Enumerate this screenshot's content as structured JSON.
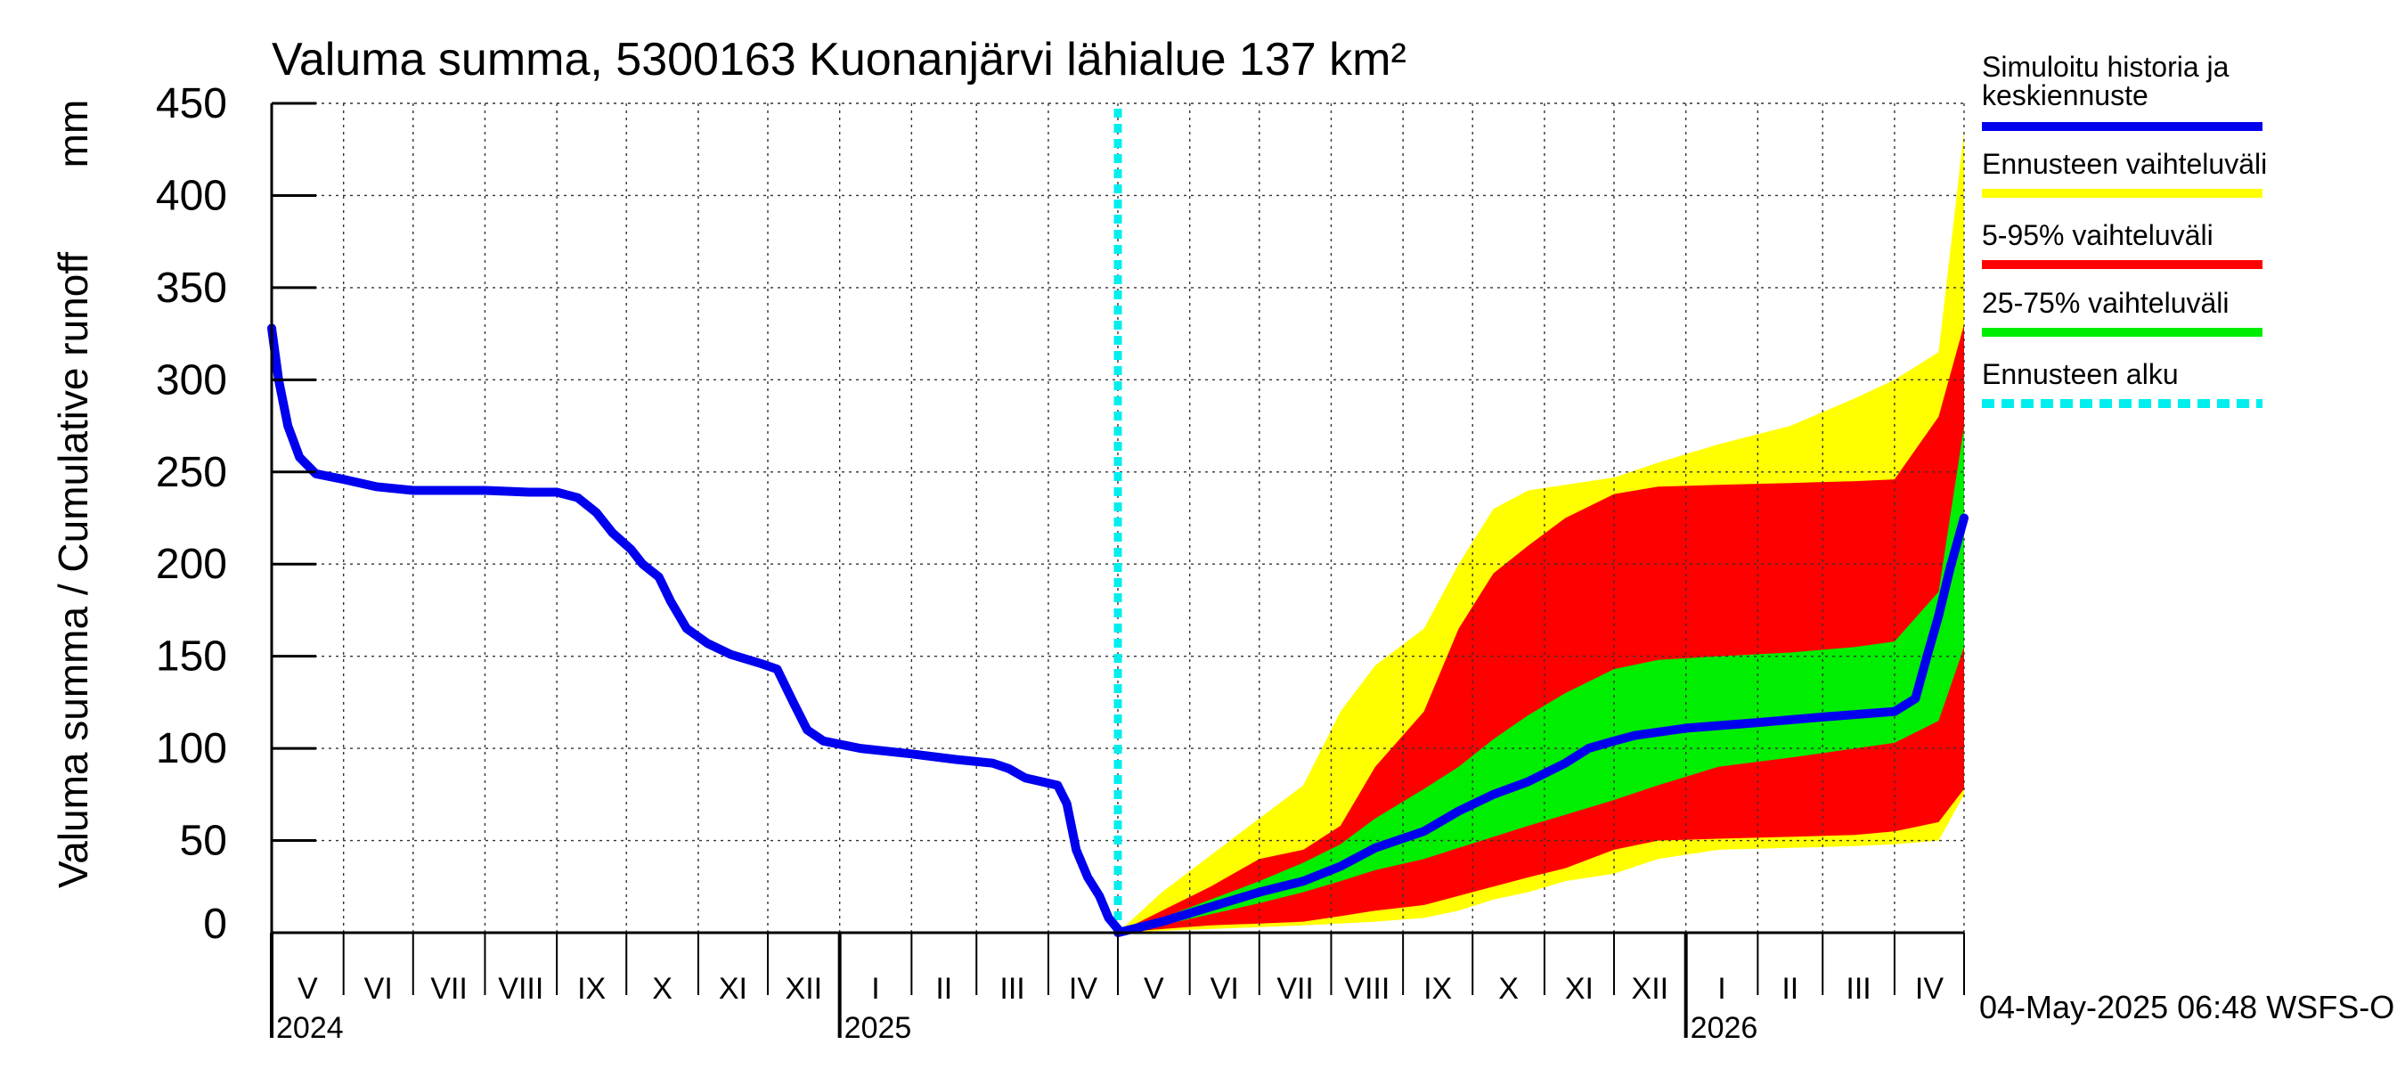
{
  "chart_data": {
    "type": "area",
    "title": "Valuma summa, 5300163 Kuonanjärvi lähialue 137 km²",
    "ylabel": "Valuma summa / Cumulative runoff",
    "yunit": "mm",
    "ylim": [
      0,
      450
    ],
    "yticks": [
      0,
      50,
      100,
      150,
      200,
      250,
      300,
      350,
      400,
      450
    ],
    "xlim": [
      "2024-05-01",
      "2026-05-01"
    ],
    "grid": true,
    "month_labels": [
      {
        "label": "V",
        "start": "2024-05-01",
        "end": "2024-06-01"
      },
      {
        "label": "VI",
        "start": "2024-06-01",
        "end": "2024-07-01"
      },
      {
        "label": "VII",
        "start": "2024-07-01",
        "end": "2024-08-01"
      },
      {
        "label": "VIII",
        "start": "2024-08-01",
        "end": "2024-09-01"
      },
      {
        "label": "IX",
        "start": "2024-09-01",
        "end": "2024-10-01"
      },
      {
        "label": "X",
        "start": "2024-10-01",
        "end": "2024-11-01"
      },
      {
        "label": "XI",
        "start": "2024-11-01",
        "end": "2024-12-01"
      },
      {
        "label": "XII",
        "start": "2024-12-01",
        "end": "2025-01-01"
      },
      {
        "label": "I",
        "start": "2025-01-01",
        "end": "2025-02-01"
      },
      {
        "label": "II",
        "start": "2025-02-01",
        "end": "2025-03-01"
      },
      {
        "label": "III",
        "start": "2025-03-01",
        "end": "2025-04-01"
      },
      {
        "label": "IV",
        "start": "2025-04-01",
        "end": "2025-05-01"
      },
      {
        "label": "V",
        "start": "2025-05-01",
        "end": "2025-06-01"
      },
      {
        "label": "VI",
        "start": "2025-06-01",
        "end": "2025-07-01"
      },
      {
        "label": "VII",
        "start": "2025-07-01",
        "end": "2025-08-01"
      },
      {
        "label": "VIII",
        "start": "2025-08-01",
        "end": "2025-09-01"
      },
      {
        "label": "IX",
        "start": "2025-09-01",
        "end": "2025-10-01"
      },
      {
        "label": "X",
        "start": "2025-10-01",
        "end": "2025-11-01"
      },
      {
        "label": "XI",
        "start": "2025-11-01",
        "end": "2025-12-01"
      },
      {
        "label": "XII",
        "start": "2025-12-01",
        "end": "2026-01-01"
      },
      {
        "label": "I",
        "start": "2026-01-01",
        "end": "2026-02-01"
      },
      {
        "label": "II",
        "start": "2026-02-01",
        "end": "2026-03-01"
      },
      {
        "label": "III",
        "start": "2026-03-01",
        "end": "2026-04-01"
      },
      {
        "label": "IV",
        "start": "2026-04-01",
        "end": "2026-05-01"
      }
    ],
    "year_labels": [
      {
        "label": "2024",
        "date": "2024-05-01"
      },
      {
        "label": "2025",
        "date": "2025-01-01"
      },
      {
        "label": "2026",
        "date": "2026-01-01"
      }
    ],
    "forecast_start": "2025-05-01",
    "history": {
      "name": "Simuloitu historia ja keskiennuste",
      "color": "#0000ee",
      "points": [
        [
          "2024-05-01",
          328
        ],
        [
          "2024-05-04",
          300
        ],
        [
          "2024-05-08",
          275
        ],
        [
          "2024-05-13",
          258
        ],
        [
          "2024-05-20",
          249
        ],
        [
          "2024-06-01",
          246
        ],
        [
          "2024-06-15",
          242
        ],
        [
          "2024-07-01",
          240
        ],
        [
          "2024-08-01",
          240
        ],
        [
          "2024-08-20",
          239
        ],
        [
          "2024-09-01",
          239
        ],
        [
          "2024-09-10",
          236
        ],
        [
          "2024-09-18",
          228
        ],
        [
          "2024-09-25",
          217
        ],
        [
          "2024-10-03",
          208
        ],
        [
          "2024-10-08",
          200
        ],
        [
          "2024-10-15",
          193
        ],
        [
          "2024-10-20",
          180
        ],
        [
          "2024-10-27",
          165
        ],
        [
          "2024-11-05",
          157
        ],
        [
          "2024-11-15",
          151
        ],
        [
          "2024-11-28",
          146
        ],
        [
          "2024-12-05",
          143
        ],
        [
          "2024-12-12",
          125
        ],
        [
          "2024-12-18",
          110
        ],
        [
          "2024-12-25",
          104
        ],
        [
          "2025-01-10",
          100
        ],
        [
          "2025-02-01",
          97
        ],
        [
          "2025-02-20",
          94
        ],
        [
          "2025-03-08",
          92
        ],
        [
          "2025-03-15",
          89
        ],
        [
          "2025-03-22",
          84
        ],
        [
          "2025-04-05",
          80
        ],
        [
          "2025-04-09",
          70
        ],
        [
          "2025-04-13",
          45
        ],
        [
          "2025-04-18",
          30
        ],
        [
          "2025-04-23",
          20
        ],
        [
          "2025-04-27",
          8
        ],
        [
          "2025-05-01",
          2
        ]
      ]
    },
    "forecast_median": {
      "name": "Simuloitu historia ja keskiennuste",
      "color": "#0000ee",
      "points": [
        [
          "2025-05-01",
          0
        ],
        [
          "2025-05-20",
          6
        ],
        [
          "2025-06-10",
          14
        ],
        [
          "2025-07-01",
          22
        ],
        [
          "2025-07-20",
          28
        ],
        [
          "2025-08-05",
          36
        ],
        [
          "2025-08-20",
          46
        ],
        [
          "2025-09-10",
          55
        ],
        [
          "2025-09-25",
          66
        ],
        [
          "2025-10-10",
          75
        ],
        [
          "2025-10-25",
          82
        ],
        [
          "2025-11-10",
          92
        ],
        [
          "2025-11-20",
          100
        ],
        [
          "2025-12-01",
          104
        ],
        [
          "2025-12-10",
          107
        ],
        [
          "2026-01-01",
          111
        ],
        [
          "2026-02-01",
          114
        ],
        [
          "2026-03-01",
          117
        ],
        [
          "2026-04-01",
          120
        ],
        [
          "2026-04-10",
          127
        ],
        [
          "2026-04-15",
          150
        ],
        [
          "2026-04-20",
          172
        ],
        [
          "2026-04-25",
          198
        ],
        [
          "2026-05-01",
          225
        ]
      ]
    },
    "bands": [
      {
        "name": "Ennusteen vaihteluväli",
        "color": "#ffff00",
        "points": [
          [
            "2025-05-01",
            0,
            0
          ],
          [
            "2025-05-20",
            22,
            1
          ],
          [
            "2025-06-10",
            42,
            2
          ],
          [
            "2025-07-01",
            62,
            3
          ],
          [
            "2025-07-20",
            80,
            4
          ],
          [
            "2025-08-05",
            120,
            5
          ],
          [
            "2025-08-20",
            145,
            6
          ],
          [
            "2025-09-10",
            165,
            8
          ],
          [
            "2025-09-25",
            200,
            12
          ],
          [
            "2025-10-10",
            230,
            18
          ],
          [
            "2025-10-25",
            240,
            22
          ],
          [
            "2025-11-10",
            243,
            28
          ],
          [
            "2025-12-01",
            247,
            32
          ],
          [
            "2025-12-20",
            255,
            40
          ],
          [
            "2026-01-15",
            265,
            45
          ],
          [
            "2026-02-15",
            275,
            46
          ],
          [
            "2026-03-15",
            290,
            47
          ],
          [
            "2026-04-01",
            300,
            48
          ],
          [
            "2026-04-20",
            315,
            50
          ],
          [
            "2026-05-01",
            435,
            75
          ]
        ]
      },
      {
        "name": "5-95% vaihteluväli",
        "color": "#ff0000",
        "points": [
          [
            "2025-05-01",
            0,
            0
          ],
          [
            "2025-05-20",
            12,
            2
          ],
          [
            "2025-06-10",
            25,
            4
          ],
          [
            "2025-07-01",
            40,
            5
          ],
          [
            "2025-07-20",
            45,
            6
          ],
          [
            "2025-08-05",
            58,
            9
          ],
          [
            "2025-08-20",
            90,
            12
          ],
          [
            "2025-09-10",
            120,
            15
          ],
          [
            "2025-09-25",
            165,
            20
          ],
          [
            "2025-10-10",
            195,
            25
          ],
          [
            "2025-10-25",
            210,
            30
          ],
          [
            "2025-11-10",
            225,
            35
          ],
          [
            "2025-12-01",
            238,
            45
          ],
          [
            "2025-12-20",
            242,
            50
          ],
          [
            "2026-01-15",
            243,
            51
          ],
          [
            "2026-02-15",
            244,
            52
          ],
          [
            "2026-03-15",
            245,
            53
          ],
          [
            "2026-04-01",
            246,
            55
          ],
          [
            "2026-04-20",
            280,
            60
          ],
          [
            "2026-05-01",
            330,
            78
          ]
        ]
      },
      {
        "name": "25-75% vaihteluväli",
        "color": "#00ee00",
        "points": [
          [
            "2025-05-01",
            0,
            0
          ],
          [
            "2025-05-20",
            8,
            4
          ],
          [
            "2025-06-10",
            18,
            10
          ],
          [
            "2025-07-01",
            28,
            16
          ],
          [
            "2025-07-20",
            38,
            22
          ],
          [
            "2025-08-05",
            48,
            28
          ],
          [
            "2025-08-20",
            62,
            34
          ],
          [
            "2025-09-10",
            78,
            40
          ],
          [
            "2025-09-25",
            90,
            46
          ],
          [
            "2025-10-10",
            105,
            52
          ],
          [
            "2025-10-25",
            118,
            58
          ],
          [
            "2025-11-10",
            130,
            64
          ],
          [
            "2025-12-01",
            143,
            72
          ],
          [
            "2025-12-20",
            148,
            80
          ],
          [
            "2026-01-15",
            150,
            90
          ],
          [
            "2026-02-15",
            152,
            95
          ],
          [
            "2026-03-15",
            155,
            100
          ],
          [
            "2026-04-01",
            158,
            103
          ],
          [
            "2026-04-20",
            185,
            115
          ],
          [
            "2026-05-01",
            275,
            155
          ]
        ]
      }
    ],
    "legend": {
      "placement": "right",
      "items": [
        {
          "label": "Simuloitu historia ja keskiennuste",
          "color": "#0000ee",
          "style": "solid"
        },
        {
          "label": "Ennusteen vaihteluväli",
          "color": "#ffff00",
          "style": "solid"
        },
        {
          "label": "5-95% vaihteluväli",
          "color": "#ff0000",
          "style": "solid"
        },
        {
          "label": "25-75% vaihteluväli",
          "color": "#00ee00",
          "style": "solid"
        },
        {
          "label": "Ennusteen alku",
          "color": "#00eeee",
          "style": "dashed"
        }
      ]
    },
    "footer": "04-May-2025 06:48 WSFS-O"
  }
}
